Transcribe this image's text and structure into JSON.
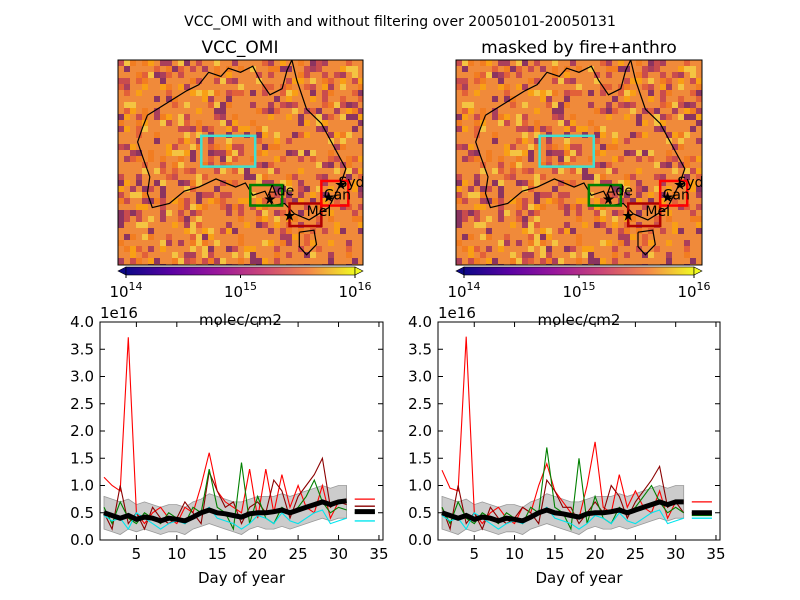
{
  "figure": {
    "suptitle": "VCC_OMI with and without filtering over 20050101-20050131"
  },
  "maps": [
    {
      "title": "VCC_OMI",
      "colorbar": {
        "ticks": [
          "10^14",
          "10^15",
          "10^16"
        ],
        "label": "molec/cm2",
        "extend": "both"
      },
      "cities": [
        "Syd",
        "Can",
        "Ade",
        "Mel"
      ]
    },
    {
      "title": "masked by fire+anthro",
      "colorbar": {
        "ticks": [
          "10^14",
          "10^15",
          "10^16"
        ],
        "label": "molec/cm2",
        "extend": "both"
      },
      "cities": [
        "Syd",
        "Can",
        "Ade",
        "Mel"
      ]
    }
  ],
  "colors": {
    "map_low": "#1b0c41",
    "map_mid": "#e35933",
    "map_high": "#fcffa4",
    "box_cyan": "#40e0d0",
    "box_green": "#008000",
    "box_red": "#ff0000",
    "box_darkred": "#b00000",
    "line_red": "#ff0000",
    "line_darkred": "#8b0000",
    "line_green": "#008000",
    "line_cyan": "#00e5ee",
    "mean_line": "#000000",
    "band": "#cccccc"
  },
  "chart_data": [
    {
      "type": "line",
      "xlabel": "Day of year",
      "ylabel": "",
      "y_multiplier_label": "1e16",
      "xlim": [
        0.5,
        35.5
      ],
      "ylim": [
        0,
        4.0
      ],
      "xticks": [
        5,
        10,
        15,
        20,
        25,
        30,
        35
      ],
      "yticks": [
        "0.0",
        "0.5",
        "1.0",
        "1.5",
        "2.0",
        "2.5",
        "3.0",
        "3.5",
        "4.0"
      ],
      "x": [
        1,
        2,
        3,
        4,
        5,
        6,
        7,
        8,
        9,
        10,
        11,
        12,
        13,
        14,
        15,
        16,
        17,
        18,
        19,
        20,
        21,
        22,
        23,
        24,
        25,
        26,
        27,
        28,
        29,
        30,
        31
      ],
      "series": [
        {
          "color": "#ff0000",
          "values": [
            1.15,
            1.0,
            0.9,
            3.72,
            0.5,
            0.3,
            0.5,
            0.6,
            0.4,
            0.3,
            0.6,
            0.5,
            1.0,
            1.6,
            0.9,
            0.7,
            0.6,
            0.5,
            1.3,
            0.4,
            1.3,
            0.5,
            1.2,
            0.6,
            1.0,
            0.6,
            0.5,
            1.0,
            0.4,
            0.7,
            0.75
          ],
          "summary": 0.75
        },
        {
          "color": "#8b0000",
          "values": [
            0.5,
            0.2,
            1.0,
            0.3,
            0.5,
            0.2,
            0.6,
            0.4,
            0.3,
            0.4,
            0.7,
            0.5,
            0.3,
            1.25,
            0.9,
            0.6,
            0.7,
            0.3,
            0.6,
            0.7,
            0.5,
            1.1,
            0.9,
            0.4,
            0.8,
            1.0,
            1.2,
            1.5,
            0.6,
            0.7,
            0.65
          ],
          "summary": 0.62
        },
        {
          "color": "#008000",
          "values": [
            0.6,
            0.3,
            0.7,
            0.4,
            0.3,
            0.5,
            0.4,
            0.3,
            0.5,
            0.4,
            0.3,
            0.6,
            0.5,
            1.3,
            0.6,
            0.5,
            0.2,
            1.42,
            0.3,
            0.8,
            0.4,
            0.3,
            0.6,
            0.5,
            0.6,
            0.8,
            1.1,
            0.7,
            0.5,
            0.6,
            0.55
          ],
          "summary": 0.5
        },
        {
          "color": "#00e5ee",
          "values": [
            0.45,
            0.35,
            0.4,
            0.2,
            0.5,
            0.4,
            0.3,
            0.2,
            0.3,
            0.35,
            0.3,
            0.4,
            0.5,
            0.6,
            0.4,
            0.35,
            0.3,
            0.2,
            0.3,
            0.45,
            0.4,
            0.3,
            0.5,
            0.35,
            0.3,
            0.4,
            0.5,
            0.55,
            0.3,
            0.35,
            0.4
          ],
          "summary": 0.35
        }
      ],
      "mean": {
        "color": "#000000",
        "values": [
          0.5,
          0.45,
          0.4,
          0.45,
          0.38,
          0.42,
          0.4,
          0.35,
          0.4,
          0.38,
          0.35,
          0.42,
          0.5,
          0.55,
          0.5,
          0.48,
          0.45,
          0.42,
          0.48,
          0.5,
          0.5,
          0.52,
          0.55,
          0.5,
          0.55,
          0.6,
          0.65,
          0.7,
          0.65,
          0.7,
          0.72
        ],
        "summary": 0.52
      },
      "band": {
        "color": "#cccccc",
        "lower": [
          0.2,
          0.15,
          0.1,
          0.2,
          0.15,
          0.2,
          0.15,
          0.1,
          0.15,
          0.15,
          0.1,
          0.2,
          0.25,
          0.3,
          0.25,
          0.2,
          0.15,
          0.1,
          0.2,
          0.25,
          0.2,
          0.2,
          0.25,
          0.2,
          0.25,
          0.3,
          0.35,
          0.4,
          0.35,
          0.4,
          0.4
        ],
        "upper": [
          0.8,
          0.75,
          0.7,
          0.75,
          0.65,
          0.7,
          0.65,
          0.6,
          0.65,
          0.65,
          0.6,
          0.7,
          0.75,
          0.85,
          0.8,
          0.75,
          0.7,
          0.7,
          0.75,
          0.8,
          0.8,
          0.8,
          0.85,
          0.8,
          0.85,
          0.9,
          0.95,
          1.0,
          0.95,
          1.0,
          1.0
        ]
      }
    },
    {
      "type": "line",
      "xlabel": "Day of year",
      "ylabel": "",
      "y_multiplier_label": "1e16",
      "xlim": [
        0.5,
        35.5
      ],
      "ylim": [
        0,
        4.0
      ],
      "xticks": [
        5,
        10,
        15,
        20,
        25,
        30,
        35
      ],
      "yticks": [
        "0.0",
        "0.5",
        "1.0",
        "1.5",
        "2.0",
        "2.5",
        "3.0",
        "3.5",
        "4.0"
      ],
      "x": [
        1,
        2,
        3,
        4,
        5,
        6,
        7,
        8,
        9,
        10,
        11,
        12,
        13,
        14,
        15,
        16,
        17,
        18,
        19,
        20,
        21,
        22,
        23,
        24,
        25,
        26,
        27,
        28,
        29,
        30,
        31
      ],
      "series": [
        {
          "color": "#ff0000",
          "values": [
            1.28,
            0.95,
            0.9,
            3.73,
            0.5,
            0.3,
            0.5,
            0.6,
            0.4,
            0.3,
            0.6,
            0.5,
            1.0,
            1.4,
            0.9,
            0.7,
            0.5,
            0.4,
            1.0,
            1.8,
            0.6,
            0.5,
            1.2,
            0.6,
            0.9,
            0.6,
            0.5,
            0.9,
            0.4,
            0.7,
            0.7
          ],
          "summary": 0.7
        },
        {
          "color": "#8b0000",
          "values": [
            0.6,
            0.2,
            1.0,
            0.3,
            0.5,
            0.2,
            0.6,
            0.4,
            0.3,
            0.4,
            0.6,
            0.5,
            0.3,
            1.1,
            0.9,
            0.6,
            0.6,
            0.3,
            0.5,
            0.7,
            0.5,
            1.0,
            0.8,
            0.4,
            0.7,
            0.9,
            1.1,
            1.35,
            0.6,
            0.7,
            0.5
          ],
          "summary": 0.5
        },
        {
          "color": "#008000",
          "values": [
            0.6,
            0.3,
            0.7,
            0.4,
            0.3,
            0.5,
            0.4,
            0.3,
            0.5,
            0.4,
            0.3,
            0.6,
            0.5,
            1.7,
            0.6,
            0.5,
            0.2,
            1.5,
            0.3,
            0.8,
            0.4,
            0.3,
            0.6,
            0.5,
            0.6,
            0.8,
            1.0,
            0.7,
            0.5,
            0.6,
            0.5
          ],
          "summary": 0.45
        },
        {
          "color": "#00e5ee",
          "values": [
            0.45,
            0.35,
            0.4,
            0.2,
            0.5,
            0.4,
            0.3,
            0.2,
            0.3,
            0.35,
            0.3,
            0.4,
            0.5,
            0.6,
            0.4,
            0.35,
            0.3,
            0.2,
            0.3,
            0.45,
            0.4,
            0.3,
            0.5,
            0.35,
            0.3,
            0.4,
            0.5,
            0.55,
            0.3,
            0.35,
            0.4
          ],
          "summary": 0.4
        }
      ],
      "mean": {
        "color": "#000000",
        "values": [
          0.5,
          0.45,
          0.4,
          0.45,
          0.38,
          0.42,
          0.4,
          0.35,
          0.4,
          0.38,
          0.35,
          0.42,
          0.5,
          0.55,
          0.5,
          0.48,
          0.45,
          0.42,
          0.48,
          0.5,
          0.5,
          0.52,
          0.55,
          0.5,
          0.55,
          0.6,
          0.65,
          0.7,
          0.65,
          0.7,
          0.7
        ],
        "summary": 0.5
      },
      "band": {
        "color": "#cccccc",
        "lower": [
          0.2,
          0.15,
          0.1,
          0.2,
          0.15,
          0.2,
          0.15,
          0.1,
          0.15,
          0.15,
          0.1,
          0.2,
          0.25,
          0.3,
          0.25,
          0.2,
          0.15,
          0.1,
          0.2,
          0.25,
          0.2,
          0.2,
          0.25,
          0.2,
          0.25,
          0.3,
          0.35,
          0.4,
          0.35,
          0.4,
          0.4
        ],
        "upper": [
          0.8,
          0.75,
          0.7,
          0.75,
          0.65,
          0.7,
          0.65,
          0.6,
          0.65,
          0.65,
          0.6,
          0.7,
          0.75,
          0.85,
          0.8,
          0.75,
          0.7,
          0.7,
          0.75,
          0.8,
          0.8,
          0.8,
          0.85,
          0.8,
          0.85,
          0.9,
          0.95,
          1.0,
          0.95,
          1.0,
          1.0
        ]
      }
    }
  ]
}
